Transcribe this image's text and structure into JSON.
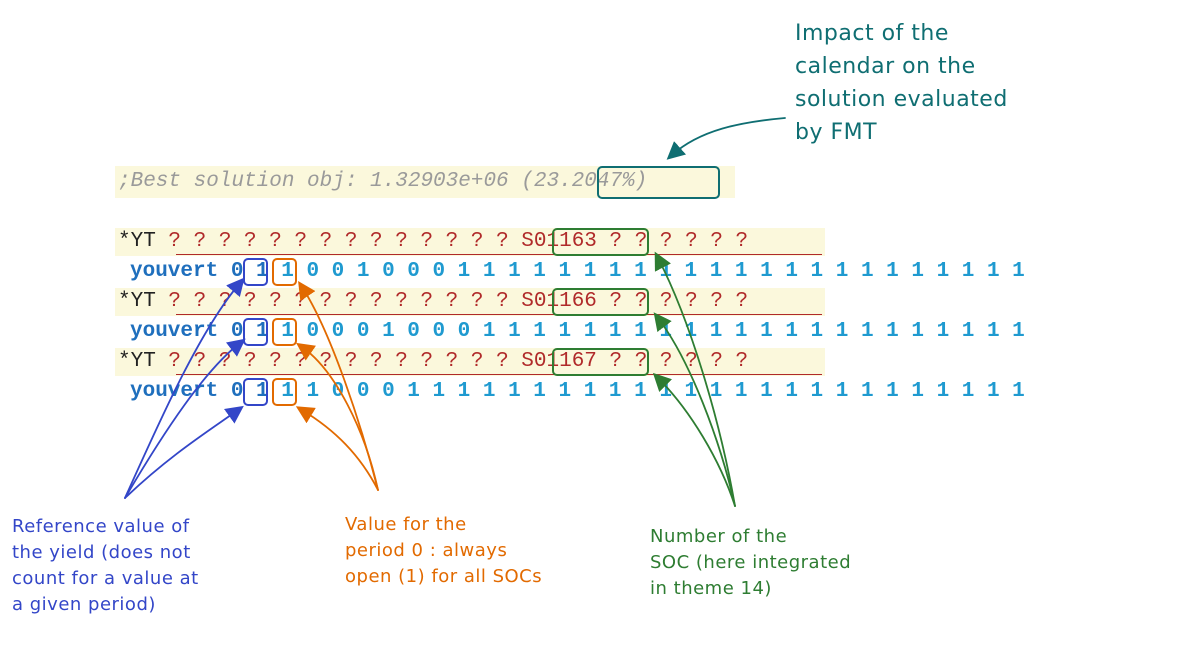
{
  "objective_line": ";Best solution obj: 1.32903e+06 (23.2047%)",
  "rows": [
    {
      "yt_prefix": "*YT ",
      "yt_questions_before": "? ? ? ? ? ? ? ? ? ? ? ? ? ? ",
      "soc": "S01163",
      "yt_questions_after": " ? ? ? ? ? ?",
      "yield_name": "youvert ",
      "yield_ref": "0",
      "period0": "1",
      "bits": " 1 0 0 1 0 0 0 1 1 1 1 1 1 1 1 1 1 1 1 1 1 1 1 1 1 1 1 1 1 1"
    },
    {
      "yt_prefix": "*YT ",
      "yt_questions_before": "? ? ? ? ? ? ? ? ? ? ? ? ? ? ",
      "soc": "S01166",
      "yt_questions_after": " ? ? ? ? ? ?",
      "yield_name": "youvert ",
      "yield_ref": "0",
      "period0": "1",
      "bits": " 1 0 0 0 1 0 0 0 1 1 1 1 1 1 1 1 1 1 1 1 1 1 1 1 1 1 1 1 1 1"
    },
    {
      "yt_prefix": "*YT ",
      "yt_questions_before": "? ? ? ? ? ? ? ? ? ? ? ? ? ? ",
      "soc": "S01167",
      "yt_questions_after": " ? ? ? ? ? ?",
      "yield_name": "youvert ",
      "yield_ref": "0",
      "period0": "1",
      "bits": " 1 1 0 0 0 1 1 1 1 1 1 1 1 1 1 1 1 1 1 1 1 1 1 1 1 1 1 1 1 1"
    }
  ],
  "annotations": {
    "impact": "Impact of the\ncalendar on the\nsolution evaluated\nby FMT",
    "reference": "Reference value of\nthe yield (does not\ncount for a value at\na given period)",
    "period0": "Value for the\nperiod 0 : always\nopen (1) for all SOCs",
    "soc_number": "Number of the\nSOC (here integrated\nin theme 14)"
  },
  "colors": {
    "teal": "#0f6e72",
    "blue": "#3346c8",
    "orange": "#e26a00",
    "green": "#2e7d32",
    "soc_red": "#b02a2a",
    "highlight": "#fbf8dc"
  }
}
